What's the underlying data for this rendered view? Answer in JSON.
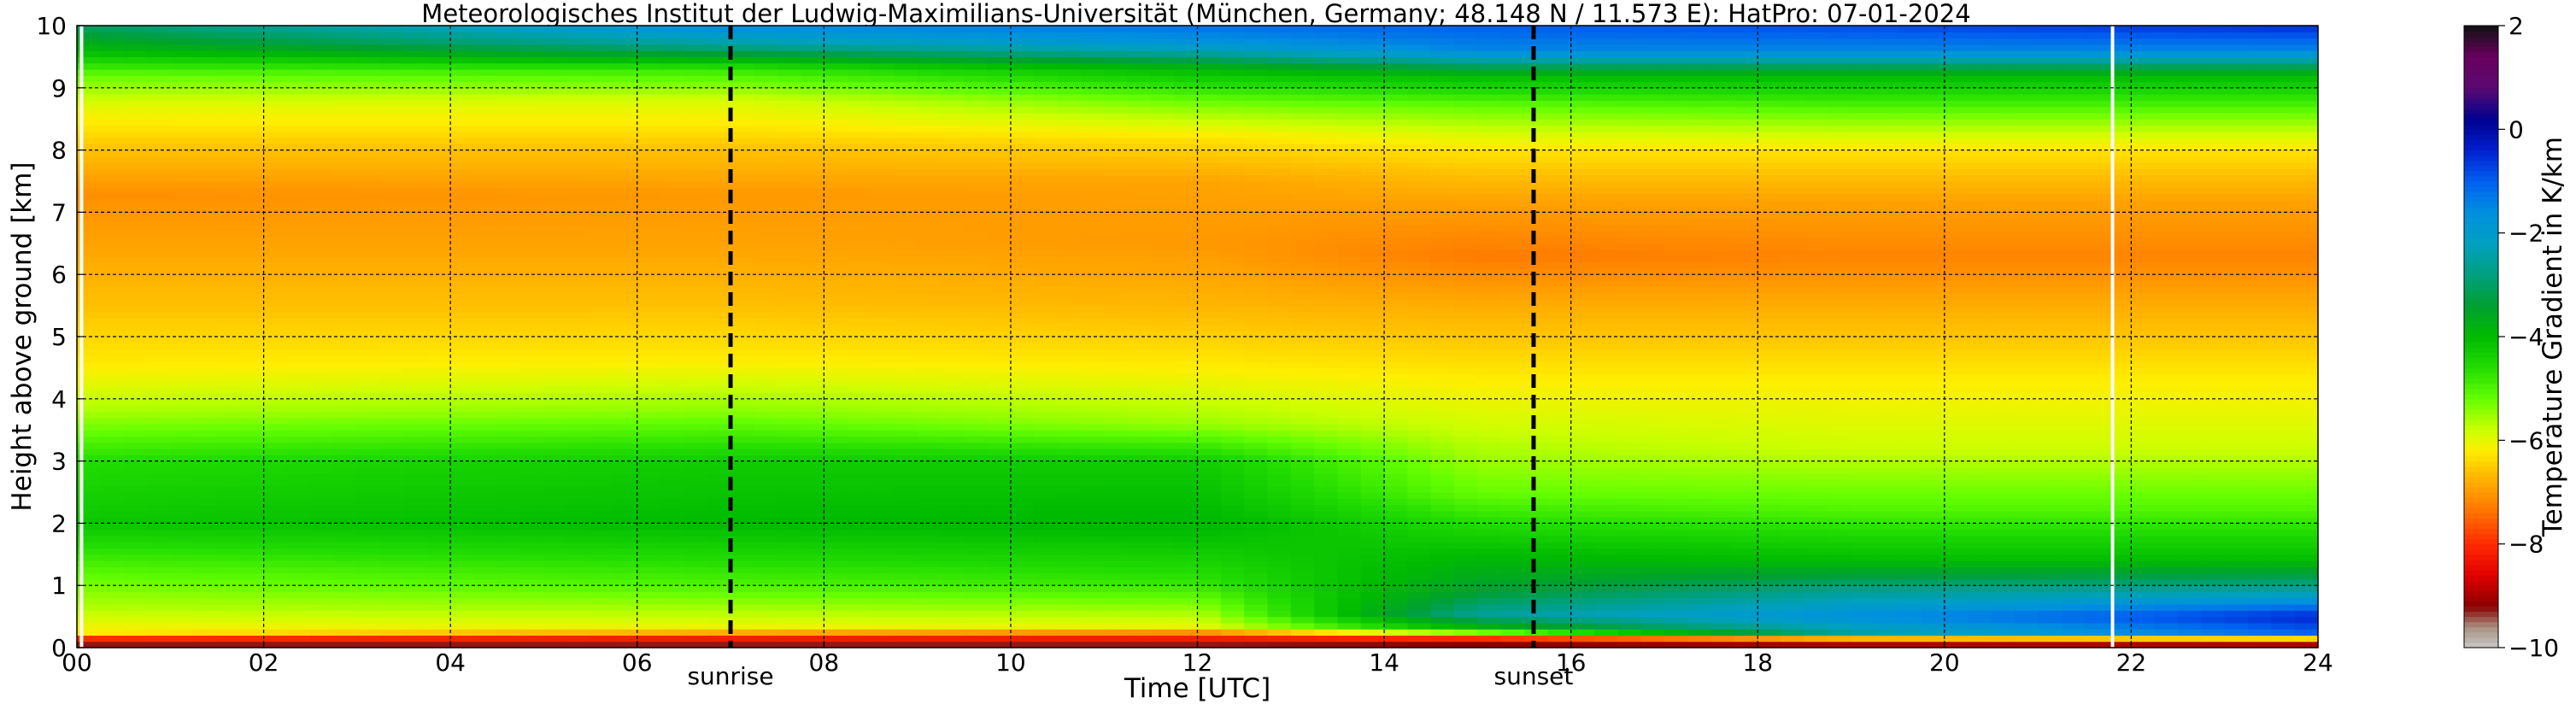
{
  "chart_data": {
    "type": "heatmap",
    "title": "Meteorologisches Institut der Ludwig-Maximilians-Universität (München, Germany; 48.148 N / 11.573 E):    HatPro: 07-01-2024",
    "xlabel": "Time [UTC]",
    "ylabel": "Height above ground [km]",
    "xlim": [
      0,
      24
    ],
    "ylim": [
      0,
      10
    ],
    "x_ticks": [
      0,
      2,
      4,
      6,
      8,
      10,
      12,
      14,
      16,
      18,
      20,
      22,
      24
    ],
    "x_tick_labels": [
      "00",
      "02",
      "04",
      "06",
      "08",
      "10",
      "12",
      "14",
      "16",
      "18",
      "20",
      "22",
      "24"
    ],
    "y_ticks": [
      0,
      1,
      2,
      3,
      4,
      5,
      6,
      7,
      8,
      9,
      10
    ],
    "y_tick_labels": [
      "0",
      "1",
      "2",
      "3",
      "4",
      "5",
      "6",
      "7",
      "8",
      "9",
      "10"
    ],
    "grid": true,
    "events": [
      {
        "label": "sunrise",
        "x": 7.0
      },
      {
        "label": "sunset",
        "x": 15.6
      }
    ],
    "colorbar": {
      "label": "Temperature Gradient in K/km",
      "range": [
        -10,
        2
      ],
      "ticks": [
        2,
        0,
        -2,
        -4,
        -6,
        -8,
        -10
      ],
      "tick_labels": [
        "2",
        "0",
        "−2",
        "−4",
        "−6",
        "−8",
        "−10"
      ],
      "colors": [
        {
          "value": -10.0,
          "color": "#c8c8c8"
        },
        {
          "value": -9.6,
          "color": "#a89080"
        },
        {
          "value": -9.2,
          "color": "#8b0000"
        },
        {
          "value": -8.6,
          "color": "#e00000"
        },
        {
          "value": -8.0,
          "color": "#ff2a00"
        },
        {
          "value": -7.4,
          "color": "#ff7000"
        },
        {
          "value": -7.0,
          "color": "#ff9900"
        },
        {
          "value": -6.6,
          "color": "#ffc000"
        },
        {
          "value": -6.2,
          "color": "#ffee00"
        },
        {
          "value": -5.8,
          "color": "#ccff00"
        },
        {
          "value": -5.2,
          "color": "#66ff00"
        },
        {
          "value": -4.6,
          "color": "#22dd00"
        },
        {
          "value": -4.0,
          "color": "#00bb00"
        },
        {
          "value": -3.4,
          "color": "#00a030"
        },
        {
          "value": -2.8,
          "color": "#00a080"
        },
        {
          "value": -2.2,
          "color": "#00a0c0"
        },
        {
          "value": -1.6,
          "color": "#0090e0"
        },
        {
          "value": -1.0,
          "color": "#0060f0"
        },
        {
          "value": -0.4,
          "color": "#0020d0"
        },
        {
          "value": 0.2,
          "color": "#000090"
        },
        {
          "value": 0.8,
          "color": "#5a0a70"
        },
        {
          "value": 1.4,
          "color": "#6a0060"
        },
        {
          "value": 2.0,
          "color": "#111111"
        }
      ]
    },
    "gradient_profiles": [
      {
        "x": 0,
        "levels": [
          {
            "h": 0.0,
            "v": -9.8
          },
          {
            "h": 0.12,
            "v": -8.5
          },
          {
            "h": 0.25,
            "v": -6.2
          },
          {
            "h": 0.6,
            "v": -5.7
          },
          {
            "h": 1.3,
            "v": -5.0
          },
          {
            "h": 2.0,
            "v": -4.2
          },
          {
            "h": 3.0,
            "v": -4.6
          },
          {
            "h": 3.8,
            "v": -5.6
          },
          {
            "h": 4.5,
            "v": -6.2
          },
          {
            "h": 5.5,
            "v": -6.6
          },
          {
            "h": 6.5,
            "v": -6.9
          },
          {
            "h": 7.3,
            "v": -7.1
          },
          {
            "h": 8.0,
            "v": -6.6
          },
          {
            "h": 8.7,
            "v": -6.0
          },
          {
            "h": 9.2,
            "v": -5.2
          },
          {
            "h": 9.6,
            "v": -4.0
          },
          {
            "h": 10.0,
            "v": -3.0
          }
        ]
      },
      {
        "x": 7,
        "levels": [
          {
            "h": 0.0,
            "v": -9.8
          },
          {
            "h": 0.15,
            "v": -8.2
          },
          {
            "h": 0.3,
            "v": -6.1
          },
          {
            "h": 1.0,
            "v": -5.0
          },
          {
            "h": 2.0,
            "v": -4.0
          },
          {
            "h": 3.0,
            "v": -4.3
          },
          {
            "h": 3.8,
            "v": -5.4
          },
          {
            "h": 4.6,
            "v": -6.2
          },
          {
            "h": 5.5,
            "v": -6.6
          },
          {
            "h": 6.5,
            "v": -6.9
          },
          {
            "h": 7.3,
            "v": -7.0
          },
          {
            "h": 8.0,
            "v": -6.6
          },
          {
            "h": 8.8,
            "v": -5.9
          },
          {
            "h": 9.3,
            "v": -4.8
          },
          {
            "h": 9.7,
            "v": -2.5
          },
          {
            "h": 10.0,
            "v": -1.5
          }
        ]
      },
      {
        "x": 12,
        "levels": [
          {
            "h": 0.0,
            "v": -9.8
          },
          {
            "h": 0.15,
            "v": -8.2
          },
          {
            "h": 0.35,
            "v": -6.0
          },
          {
            "h": 1.0,
            "v": -4.8
          },
          {
            "h": 2.0,
            "v": -3.9
          },
          {
            "h": 3.0,
            "v": -4.3
          },
          {
            "h": 3.6,
            "v": -5.5
          },
          {
            "h": 4.5,
            "v": -6.2
          },
          {
            "h": 5.5,
            "v": -6.7
          },
          {
            "h": 6.5,
            "v": -7.0
          },
          {
            "h": 7.5,
            "v": -6.9
          },
          {
            "h": 8.2,
            "v": -6.3
          },
          {
            "h": 8.8,
            "v": -5.2
          },
          {
            "h": 9.3,
            "v": -4.0
          },
          {
            "h": 9.7,
            "v": -1.8
          },
          {
            "h": 10.0,
            "v": -1.2
          }
        ]
      },
      {
        "x": 15,
        "levels": [
          {
            "h": 0.0,
            "v": -9.8
          },
          {
            "h": 0.15,
            "v": -8.0
          },
          {
            "h": 0.3,
            "v": -4.0
          },
          {
            "h": 0.55,
            "v": -2.6
          },
          {
            "h": 0.9,
            "v": -3.4
          },
          {
            "h": 1.5,
            "v": -4.0
          },
          {
            "h": 2.5,
            "v": -5.2
          },
          {
            "h": 3.5,
            "v": -5.8
          },
          {
            "h": 4.5,
            "v": -6.3
          },
          {
            "h": 5.5,
            "v": -6.8
          },
          {
            "h": 6.3,
            "v": -7.3
          },
          {
            "h": 7.2,
            "v": -6.9
          },
          {
            "h": 8.0,
            "v": -6.3
          },
          {
            "h": 8.7,
            "v": -5.2
          },
          {
            "h": 9.2,
            "v": -4.0
          },
          {
            "h": 9.6,
            "v": -1.5
          },
          {
            "h": 10.0,
            "v": -1.0
          }
        ]
      },
      {
        "x": 19,
        "levels": [
          {
            "h": 0.0,
            "v": -9.6
          },
          {
            "h": 0.12,
            "v": -8.0
          },
          {
            "h": 0.25,
            "v": -2.5
          },
          {
            "h": 0.5,
            "v": -1.6
          },
          {
            "h": 0.9,
            "v": -2.6
          },
          {
            "h": 1.4,
            "v": -4.0
          },
          {
            "h": 2.2,
            "v": -5.0
          },
          {
            "h": 3.2,
            "v": -5.8
          },
          {
            "h": 4.3,
            "v": -6.2
          },
          {
            "h": 5.5,
            "v": -6.8
          },
          {
            "h": 6.3,
            "v": -7.2
          },
          {
            "h": 7.2,
            "v": -6.9
          },
          {
            "h": 8.0,
            "v": -6.3
          },
          {
            "h": 8.6,
            "v": -5.2
          },
          {
            "h": 9.2,
            "v": -4.0
          },
          {
            "h": 9.6,
            "v": -1.5
          },
          {
            "h": 10.0,
            "v": -0.8
          }
        ]
      },
      {
        "x": 24,
        "levels": [
          {
            "h": 0.0,
            "v": -9.6
          },
          {
            "h": 0.12,
            "v": -8.0
          },
          {
            "h": 0.25,
            "v": -1.0
          },
          {
            "h": 0.5,
            "v": -0.4
          },
          {
            "h": 0.9,
            "v": -2.4
          },
          {
            "h": 1.4,
            "v": -4.0
          },
          {
            "h": 2.2,
            "v": -5.0
          },
          {
            "h": 3.2,
            "v": -5.8
          },
          {
            "h": 4.3,
            "v": -6.2
          },
          {
            "h": 5.5,
            "v": -6.8
          },
          {
            "h": 6.3,
            "v": -7.2
          },
          {
            "h": 7.2,
            "v": -6.9
          },
          {
            "h": 8.0,
            "v": -6.3
          },
          {
            "h": 8.6,
            "v": -5.2
          },
          {
            "h": 9.2,
            "v": -4.0
          },
          {
            "h": 9.6,
            "v": -1.5
          },
          {
            "h": 10.0,
            "v": -0.5
          }
        ]
      }
    ],
    "data_gaps": [
      0.05,
      21.8
    ]
  }
}
